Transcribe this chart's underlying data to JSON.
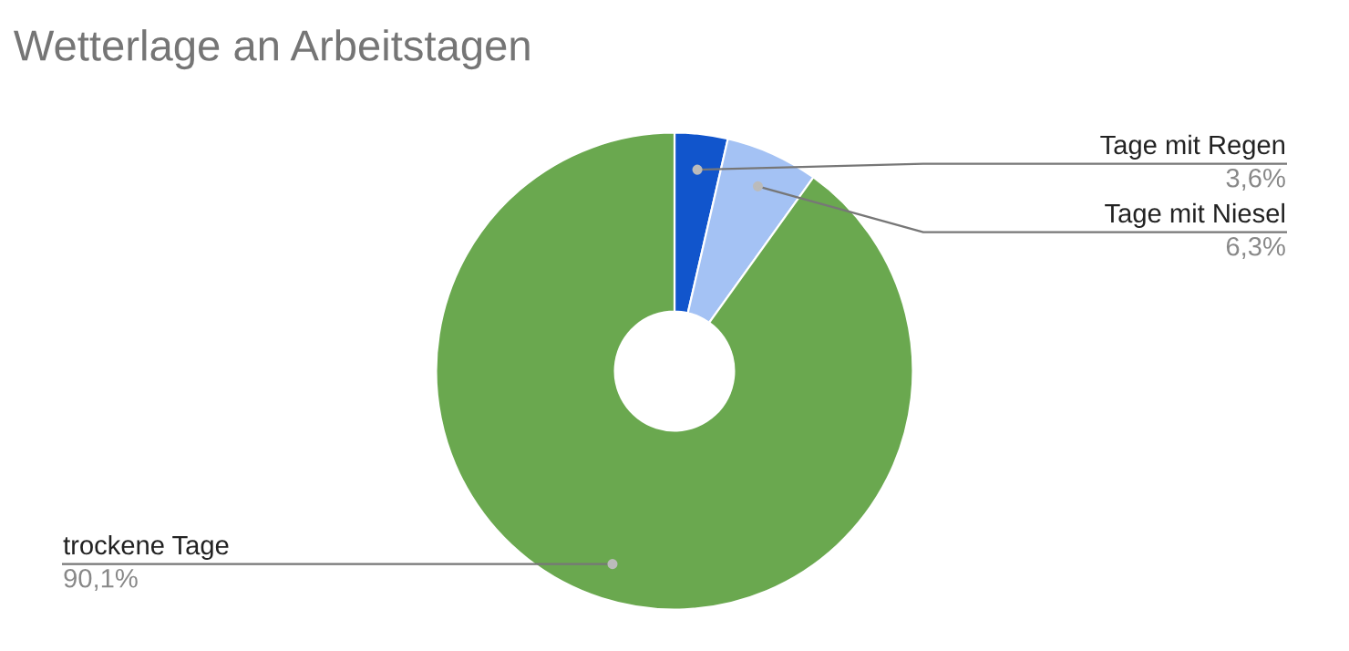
{
  "chart_data": {
    "type": "donut",
    "title": "Wetterlage an Arbeitstagen",
    "categories": [
      "Tage mit Regen",
      "Tage mit Niesel",
      "trockene Tage"
    ],
    "values": [
      3.6,
      6.3,
      90.1
    ],
    "value_labels": [
      "3,6%",
      "6,3%",
      "90,1%"
    ],
    "colors": [
      "#1155cc",
      "#a4c2f4",
      "#6aa84f"
    ],
    "legend": false
  }
}
